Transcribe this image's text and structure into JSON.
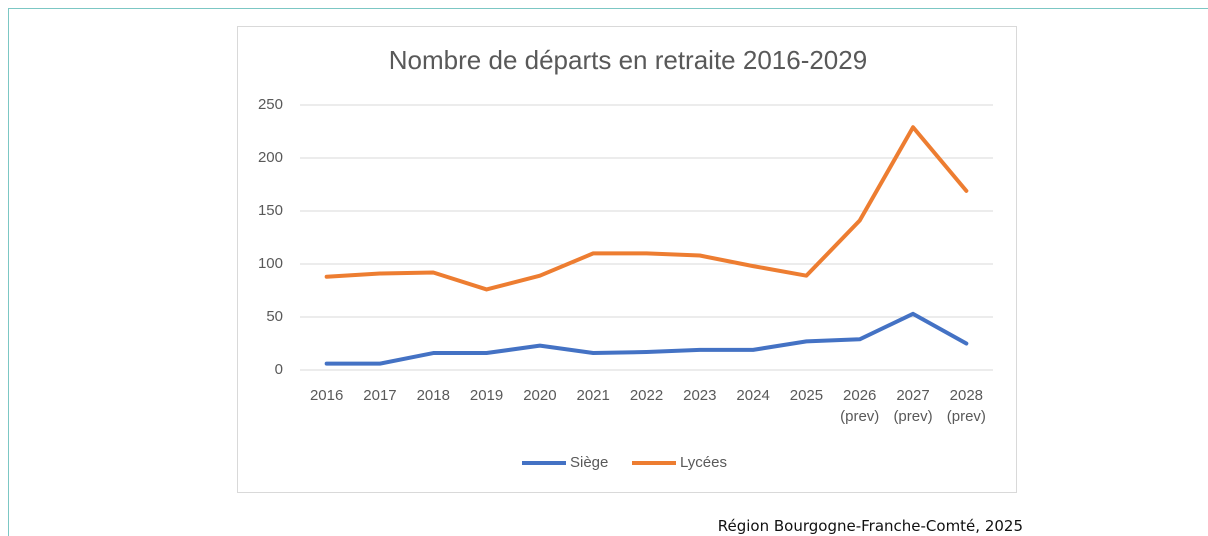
{
  "chart_data": {
    "type": "line",
    "title": "Nombre de départs en retraite 2016-2029",
    "categories": [
      "2016",
      "2017",
      "2018",
      "2019",
      "2020",
      "2021",
      "2022",
      "2023",
      "2024",
      "2025",
      "2026 (prev)",
      "2027 (prev)",
      "2028 (prev)"
    ],
    "series": [
      {
        "name": "Siège",
        "color": "#4472c4",
        "values": [
          6,
          6,
          16,
          16,
          23,
          16,
          17,
          19,
          19,
          27,
          29,
          53,
          25
        ]
      },
      {
        "name": "Lycées",
        "color": "#ed7d31",
        "values": [
          88,
          91,
          92,
          76,
          89,
          110,
          110,
          108,
          98,
          89,
          141,
          229,
          169
        ]
      }
    ],
    "ylim": [
      0,
      250
    ],
    "yticks": [
      0,
      50,
      100,
      150,
      200,
      250
    ],
    "grid": true,
    "legend": "bottom"
  },
  "caption": "Région Bourgogne-Franche-Comté, 2025"
}
